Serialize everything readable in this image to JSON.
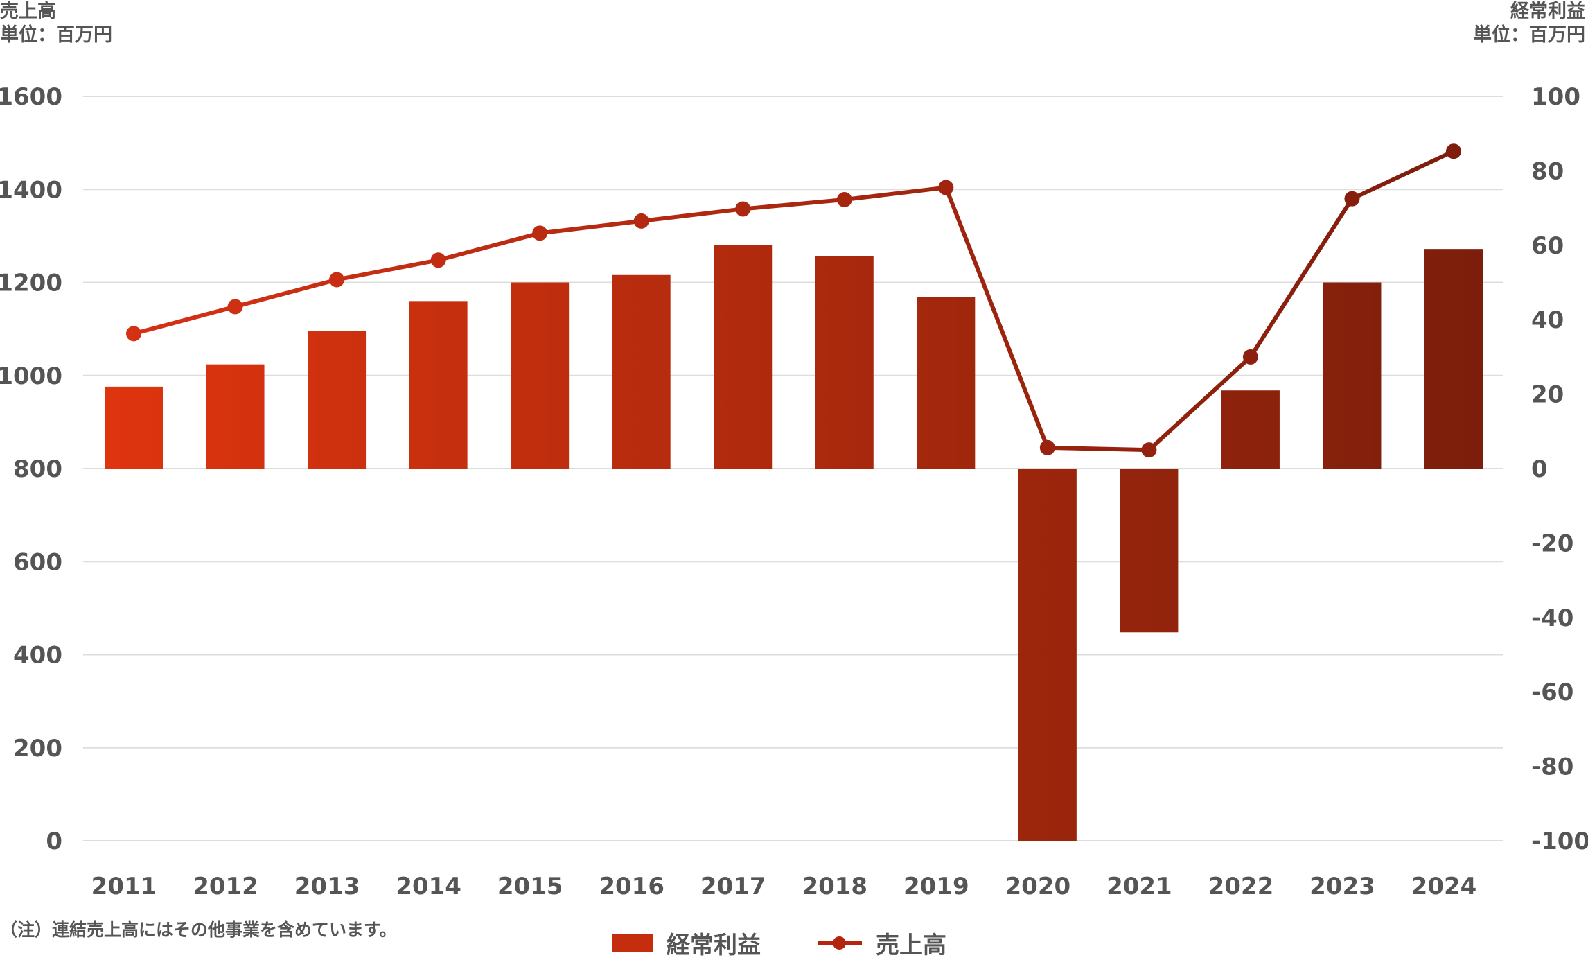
{
  "chart_data": {
    "type": "bar+line",
    "left_axis": {
      "title": "売上高",
      "unit": "単位：百万円",
      "range": [
        0,
        1600
      ],
      "ticks": [
        "0",
        "200",
        "400",
        "600",
        "800",
        "1000",
        "1200",
        "1400",
        "1600"
      ]
    },
    "right_axis": {
      "title": "経常利益",
      "unit": "単位：百万円",
      "range": [
        -100,
        100
      ],
      "ticks": [
        "-100",
        "-80",
        "-60",
        "-40",
        "-20",
        "0",
        "20",
        "40",
        "60",
        "80",
        "100"
      ]
    },
    "categories": [
      "2011",
      "2012",
      "2013",
      "2014",
      "2015",
      "2016",
      "2017",
      "2018",
      "2019",
      "2020",
      "2021",
      "2022",
      "2023",
      "2024"
    ],
    "series": [
      {
        "name": "経常利益",
        "type": "bar",
        "axis": "right",
        "values": [
          22,
          28,
          37,
          45,
          50,
          52,
          60,
          57,
          46,
          -100,
          -44,
          21,
          50,
          59
        ]
      },
      {
        "name": "売上高",
        "type": "line",
        "axis": "left",
        "values": [
          1090,
          1148,
          1206,
          1248,
          1306,
          1332,
          1358,
          1378,
          1404,
          845,
          840,
          1040,
          1380,
          1482
        ]
      }
    ],
    "grid": true,
    "legend": "bottom-center",
    "colors": {
      "bar_start": "#e0350f",
      "bar_end": "#7a1e0b",
      "line_start": "#d83214",
      "line_end": "#7c1c0c",
      "grid": "#dddddd",
      "text": "#555555"
    }
  },
  "note": "（注）連結売上高にはその他事業を含めています。"
}
